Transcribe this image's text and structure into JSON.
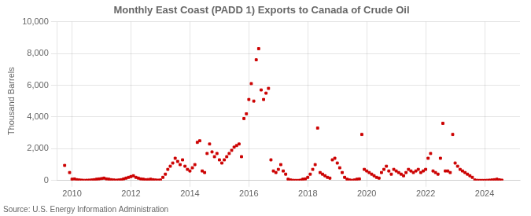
{
  "chart_data": {
    "type": "scatter",
    "title": "Monthly East Coast (PADD 1) Exports to Canada of Crude Oil",
    "ylabel": "Thousand Barrels",
    "annotations": [
      "Source: U.S. Energy Information Administration"
    ],
    "color": "#cc0000",
    "marker": "square",
    "grid": true,
    "xlim": [
      2009.5,
      2025.2
    ],
    "xticks": [
      2010,
      2012,
      2014,
      2016,
      2018,
      2020,
      2022,
      2024
    ],
    "ylim": [
      0,
      10000
    ],
    "yticks": [
      0,
      {
        "value": 2000,
        "label": "2,000"
      },
      {
        "value": 4000,
        "label": "4,000"
      },
      {
        "value": 6000,
        "label": "6,000"
      },
      {
        "value": 8000,
        "label": "8,000"
      },
      {
        "value": 10000,
        "label": "10,000"
      }
    ],
    "x": [
      2009.75,
      2009.917,
      2010.0,
      2010.083,
      2010.167,
      2010.25,
      2010.333,
      2010.417,
      2010.5,
      2010.583,
      2010.667,
      2010.75,
      2010.833,
      2010.917,
      2011.0,
      2011.083,
      2011.167,
      2011.25,
      2011.333,
      2011.417,
      2011.5,
      2011.583,
      2011.667,
      2011.75,
      2011.833,
      2011.917,
      2012.0,
      2012.083,
      2012.167,
      2012.25,
      2012.333,
      2012.417,
      2012.5,
      2012.583,
      2012.667,
      2012.75,
      2012.833,
      2012.917,
      2013.0,
      2013.083,
      2013.167,
      2013.25,
      2013.333,
      2013.417,
      2013.5,
      2013.583,
      2013.667,
      2013.75,
      2013.833,
      2013.917,
      2014.0,
      2014.083,
      2014.167,
      2014.25,
      2014.333,
      2014.417,
      2014.5,
      2014.583,
      2014.667,
      2014.75,
      2014.833,
      2014.917,
      2015.0,
      2015.083,
      2015.167,
      2015.25,
      2015.333,
      2015.417,
      2015.5,
      2015.583,
      2015.667,
      2015.75,
      2015.833,
      2015.917,
      2016.0,
      2016.083,
      2016.167,
      2016.25,
      2016.333,
      2016.417,
      2016.5,
      2016.583,
      2016.667,
      2016.75,
      2016.833,
      2016.917,
      2017.0,
      2017.083,
      2017.167,
      2017.25,
      2017.333,
      2017.417,
      2017.5,
      2017.583,
      2017.667,
      2017.75,
      2017.833,
      2017.917,
      2018.0,
      2018.083,
      2018.167,
      2018.25,
      2018.333,
      2018.417,
      2018.5,
      2018.583,
      2018.667,
      2018.75,
      2018.833,
      2018.917,
      2019.0,
      2019.083,
      2019.167,
      2019.25,
      2019.333,
      2019.417,
      2019.5,
      2019.583,
      2019.667,
      2019.75,
      2019.833,
      2019.917,
      2020.0,
      2020.083,
      2020.167,
      2020.25,
      2020.333,
      2020.417,
      2020.5,
      2020.583,
      2020.667,
      2020.75,
      2020.833,
      2020.917,
      2021.0,
      2021.083,
      2021.167,
      2021.25,
      2021.333,
      2021.417,
      2021.5,
      2021.583,
      2021.667,
      2021.75,
      2021.833,
      2021.917,
      2022.0,
      2022.083,
      2022.167,
      2022.25,
      2022.333,
      2022.417,
      2022.5,
      2022.583,
      2022.667,
      2022.75,
      2022.833,
      2022.917,
      2023.0,
      2023.083,
      2023.167,
      2023.25,
      2023.333,
      2023.417,
      2023.5,
      2023.583,
      2023.667,
      2023.75,
      2023.833,
      2023.917,
      2024.0,
      2024.083,
      2024.167,
      2024.25,
      2024.333,
      2024.417,
      2024.5,
      2024.583
    ],
    "values": [
      950,
      500,
      80,
      100,
      50,
      30,
      20,
      10,
      15,
      20,
      30,
      50,
      80,
      100,
      120,
      150,
      100,
      80,
      50,
      30,
      20,
      30,
      50,
      100,
      150,
      200,
      250,
      300,
      200,
      150,
      100,
      80,
      50,
      60,
      80,
      50,
      30,
      20,
      30,
      200,
      400,
      700,
      900,
      1100,
      1400,
      1200,
      1000,
      1300,
      900,
      700,
      600,
      800,
      1000,
      2400,
      2500,
      600,
      500,
      1700,
      2300,
      1800,
      1500,
      1700,
      1300,
      1100,
      1300,
      1500,
      1700,
      1900,
      2100,
      2200,
      2300,
      1500,
      3900,
      4200,
      5100,
      6100,
      5000,
      7600,
      8300,
      5700,
      5100,
      5500,
      5800,
      1300,
      600,
      500,
      700,
      1000,
      600,
      400,
      80,
      30,
      10,
      5,
      5,
      20,
      80,
      100,
      200,
      400,
      700,
      1000,
      3300,
      500,
      400,
      300,
      200,
      150,
      1300,
      1400,
      1100,
      800,
      500,
      200,
      80,
      30,
      10,
      30,
      80,
      100,
      2900,
      700,
      600,
      500,
      400,
      300,
      200,
      150,
      500,
      700,
      900,
      600,
      400,
      700,
      600,
      500,
      400,
      300,
      500,
      700,
      600,
      500,
      600,
      700,
      500,
      600,
      700,
      1400,
      1700,
      600,
      500,
      400,
      1400,
      3600,
      600,
      600,
      500,
      2900,
      1100,
      900,
      700,
      600,
      500,
      400,
      300,
      200,
      30,
      10,
      5,
      5,
      5,
      10,
      20,
      30,
      50,
      80,
      40,
      20
    ]
  }
}
